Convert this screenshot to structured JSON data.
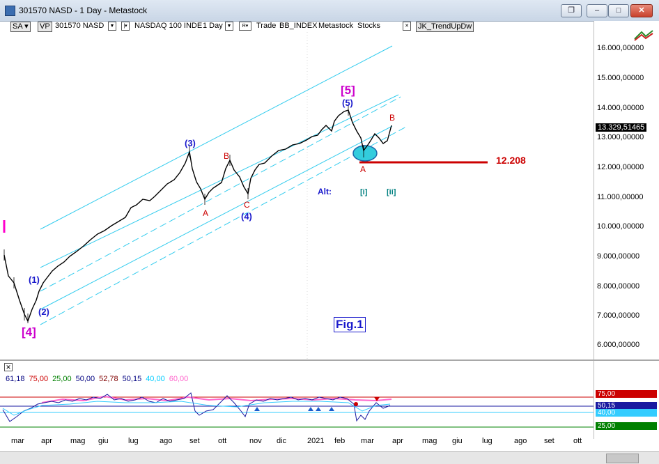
{
  "window": {
    "title": "301570 NASD - 1 Day - Metastock"
  },
  "toolbar": {
    "sa": "SA",
    "vp": "VP",
    "symbol": "301570 NASD",
    "index_box": "NASDAQ 100 INDE",
    "period": "1 Day",
    "r_box": "R",
    "trade": "Trade",
    "bb": "BB_INDEX",
    "mstock": "Metastock",
    "stocks": "Stocks",
    "expert": "JK_TrendUpDw",
    "x_mark": "✕"
  },
  "price_axis": {
    "ticks": [
      "16.000,00000",
      "15.000,00000",
      "14.000,00000",
      "13.000,00000",
      "12.000,00000",
      "11.000,00000",
      "10.000,00000",
      "9.000,00000",
      "8.000,00000",
      "7.000,00000",
      "6.000,00000"
    ],
    "last_price": "13.329,51465"
  },
  "annotations": {
    "w5_big": "[5]",
    "w5": "(5)",
    "w3": "(3)",
    "w4": "(4)",
    "w1": "(1)",
    "w2": "(2)",
    "w4_big": "[4]",
    "b1": "B",
    "a1": "A",
    "c1": "C",
    "b2": "B",
    "a2": "A",
    "alt": "Alt:",
    "i": "[i]",
    "ii": "[ii]",
    "level": "12.208",
    "fig": "Fig.1"
  },
  "indicator": {
    "values": [
      "61,18",
      "75,00",
      "25,00",
      "50,00",
      "52,78",
      "50,15",
      "40,00",
      "60,00"
    ],
    "colors": [
      "#000080",
      "#cc0000",
      "#008000",
      "#000080",
      "#800000",
      "#000080",
      "#00ccff",
      "#ff66cc"
    ],
    "right_labels": [
      "75,00",
      "50,15",
      "40,00",
      "25,00"
    ],
    "right_colors": [
      "#cc0000",
      "#1a1aa0",
      "#33ccff",
      "#008000"
    ]
  },
  "months": [
    "mar",
    "apr",
    "mag",
    "giu",
    "lug",
    "ago",
    "set",
    "ott",
    "nov",
    "dic",
    "2021",
    "feb",
    "mar",
    "apr",
    "mag",
    "giu",
    "lug",
    "ago",
    "set",
    "ott"
  ]
}
